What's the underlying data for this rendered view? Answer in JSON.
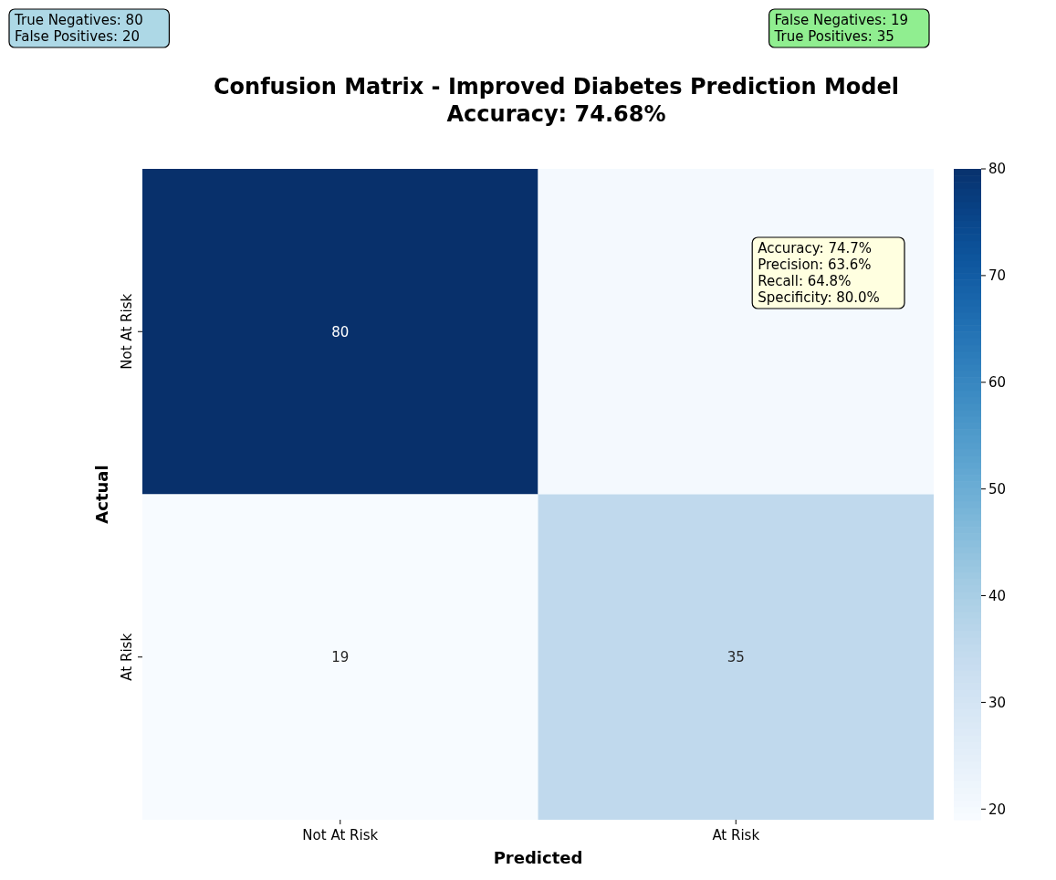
{
  "chart_data": {
    "type": "heatmap",
    "title": "Confusion Matrix - Improved Diabetes Prediction Model\nAccuracy: 74.68%",
    "xlabel": "Predicted",
    "ylabel": "Actual",
    "categories": [
      "Not At Risk",
      "At Risk"
    ],
    "y_categories": [
      "Not At Risk",
      "At Risk"
    ],
    "cells": [
      [
        80,
        20
      ],
      [
        19,
        35
      ]
    ],
    "cell_labels": [
      [
        "80",
        null
      ],
      [
        "19",
        "35"
      ]
    ],
    "clim": [
      19,
      80
    ],
    "cticks": [
      20,
      30,
      40,
      50,
      60,
      70,
      80
    ],
    "annotations": [
      "True Negatives: 80\nFalse Positives: 20",
      "False Negatives: 19\nTrue Positives: 35",
      "Accuracy: 74.7%\nPrecision: 63.6%\nRecall: 64.8%\nSpecificity: 80.0%"
    ]
  }
}
